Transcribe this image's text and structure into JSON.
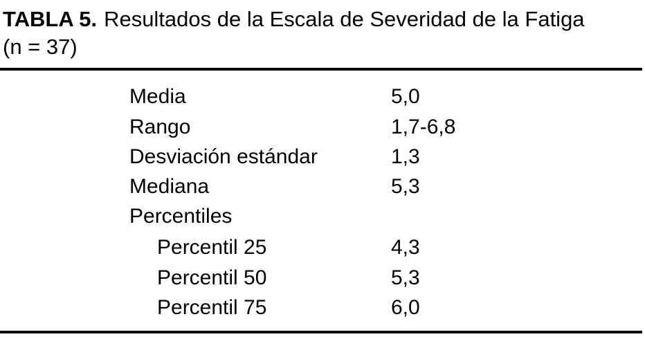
{
  "header": {
    "label": "TABLA 5.",
    "caption": "Resultados de la Escala de Severidad de la Fatiga",
    "sample": "(n = 37)"
  },
  "table": {
    "rows": [
      {
        "label": "Media",
        "value": "5,0"
      },
      {
        "label": "Rango",
        "value": "1,7-6,8"
      },
      {
        "label": "Desviación estándar",
        "value": "1,3"
      },
      {
        "label": "Mediana",
        "value": "5,3"
      }
    ],
    "group": {
      "label": "Percentiles",
      "rows": [
        {
          "label": "Percentil 25",
          "value": "4,3"
        },
        {
          "label": "Percentil 50",
          "value": "5,3"
        },
        {
          "label": "Percentil 75",
          "value": "6,0"
        }
      ]
    }
  }
}
